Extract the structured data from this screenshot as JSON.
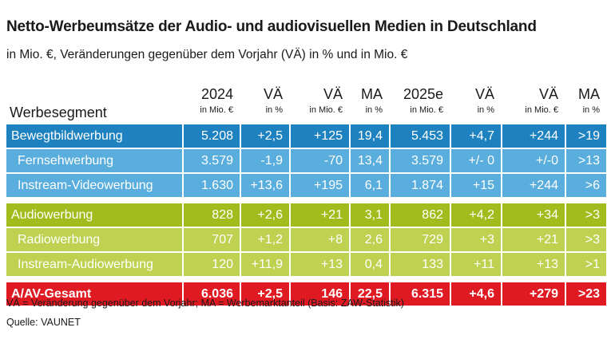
{
  "title": "Netto-Werbeumsätze der Audio- und audiovisuellen Medien in Deutschland",
  "subtitle": "in Mio. €, Veränderungen gegenüber dem Vorjahr (VÄ) in % und in Mio. €",
  "header": {
    "segment": "Werbesegment",
    "cols": [
      "2024",
      "VÄ",
      "VÄ",
      "MA",
      "2025e",
      "VÄ",
      "VÄ",
      "MA"
    ],
    "units": [
      "in Mio. €",
      "in %",
      "in Mio. €",
      "in %",
      "in Mio. €",
      "in %",
      "in Mio. €",
      "in %"
    ]
  },
  "rows": [
    {
      "label": "Bewegtbildwerbung",
      "values": [
        "5.208",
        "+2,5",
        "+125",
        "19,4",
        "5.453",
        "+4,7",
        "+244",
        ">19"
      ]
    },
    {
      "label": "Fernsehwerbung",
      "values": [
        "3.579",
        "-1,9",
        "-70",
        "13,4",
        "3.579",
        "+/- 0",
        "+/-0",
        ">13"
      ]
    },
    {
      "label": "Instream-Videowerbung",
      "values": [
        "1.630",
        "+13,6",
        "+195",
        "6,1",
        "1.874",
        "+15",
        "+244",
        ">6"
      ]
    },
    {
      "label": "Audiowerbung",
      "values": [
        "828",
        "+2,6",
        "+21",
        "3,1",
        "862",
        "+4,2",
        "+34",
        ">3"
      ]
    },
    {
      "label": "Radiowerbung",
      "values": [
        "707",
        "+1,2",
        "+8",
        "2,6",
        "729",
        "+3",
        "+21",
        ">3"
      ]
    },
    {
      "label": "Instream-Audiowerbung",
      "values": [
        "120",
        "+11,9",
        "+13",
        "0,4",
        "133",
        "+11",
        "+13",
        ">1"
      ]
    },
    {
      "label": "A/AV-Gesamt",
      "values": [
        "6.036",
        "+2,5",
        "146",
        "22,5",
        "6.315",
        "+4,6",
        "+279",
        ">23"
      ]
    }
  ],
  "footnote": "VÄ = Veränderung gegenüber dem Vorjahr; MA = Werbemarktanteil (Basis: ZAW-Statistik)",
  "source": "Quelle: VAUNET",
  "colors": {
    "blue_main": "#1f82c0",
    "blue_sub": "#5aaedd",
    "green_main": "#a3bc1d",
    "green_sub": "#bfd150",
    "red_total": "#e01a22"
  }
}
